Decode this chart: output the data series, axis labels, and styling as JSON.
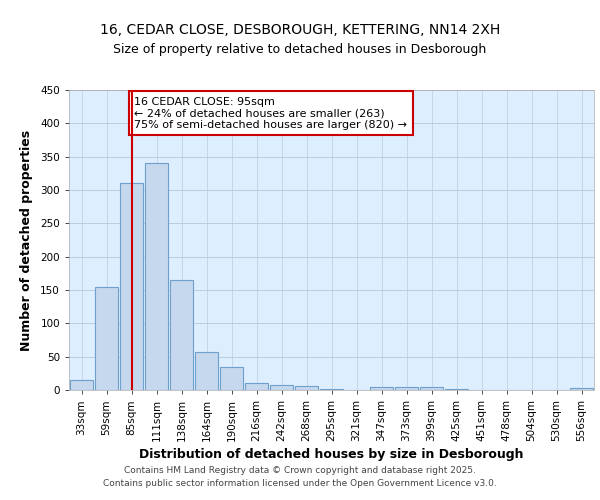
{
  "title_line1": "16, CEDAR CLOSE, DESBOROUGH, KETTERING, NN14 2XH",
  "title_line2": "Size of property relative to detached houses in Desborough",
  "xlabel": "Distribution of detached houses by size in Desborough",
  "ylabel": "Number of detached properties",
  "categories": [
    "33sqm",
    "59sqm",
    "85sqm",
    "111sqm",
    "138sqm",
    "164sqm",
    "190sqm",
    "216sqm",
    "242sqm",
    "268sqm",
    "295sqm",
    "321sqm",
    "347sqm",
    "373sqm",
    "399sqm",
    "425sqm",
    "451sqm",
    "478sqm",
    "504sqm",
    "530sqm",
    "556sqm"
  ],
  "values": [
    15,
    155,
    310,
    340,
    165,
    57,
    34,
    10,
    8,
    6,
    1,
    0,
    5,
    5,
    4,
    1,
    0,
    0,
    0,
    0,
    3
  ],
  "bar_color": "#c5d8ee",
  "bar_edge_color": "#6fa0cc",
  "grid_color": "#b8cde0",
  "background_color": "#ddeeff",
  "vline_x_index": 2,
  "vline_color": "#cc0000",
  "annotation_text": "16 CEDAR CLOSE: 95sqm\n← 24% of detached houses are smaller (263)\n75% of semi-detached houses are larger (820) →",
  "annotation_box_color": "#ffffff",
  "annotation_box_edge_color": "#cc0000",
  "ylim": [
    0,
    450
  ],
  "yticks": [
    0,
    50,
    100,
    150,
    200,
    250,
    300,
    350,
    400,
    450
  ],
  "footer_line1": "Contains HM Land Registry data © Crown copyright and database right 2025.",
  "footer_line2": "Contains public sector information licensed under the Open Government Licence v3.0.",
  "title_fontsize": 10,
  "subtitle_fontsize": 9,
  "axis_label_fontsize": 9,
  "tick_fontsize": 7.5,
  "annotation_fontsize": 8,
  "footer_fontsize": 6.5
}
